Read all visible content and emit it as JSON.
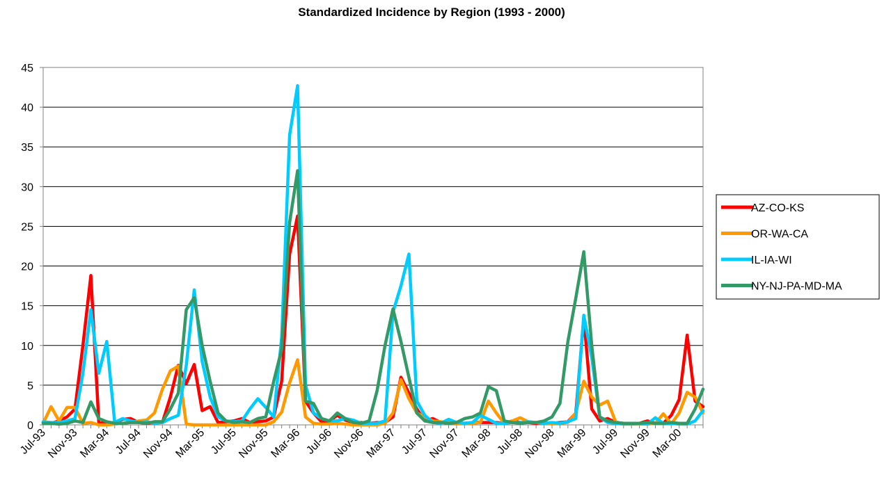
{
  "chart_data": {
    "type": "line",
    "title": "Standardized Incidence by Region (1993 - 2000)",
    "xlabel": "",
    "ylabel": "",
    "ylim": [
      0,
      45
    ],
    "yticks": [
      0,
      5,
      10,
      15,
      20,
      25,
      30,
      35,
      40,
      45
    ],
    "grid": true,
    "legend_position": "right",
    "x_tick_labels": [
      "Jul-93",
      "Nov-93",
      "Mar-94",
      "Jul-94",
      "Nov-94",
      "Mar-95",
      "Jul-95",
      "Nov-95",
      "Mar-96",
      "Jul-96",
      "Nov-96",
      "Mar-97",
      "Jul-97",
      "Nov-97",
      "Mar-98",
      "Jul-98",
      "Nov-98",
      "Mar-99",
      "Jul-99",
      "Nov-99",
      "Mar-00"
    ],
    "x": [
      "Jul-93",
      "Aug-93",
      "Sep-93",
      "Oct-93",
      "Nov-93",
      "Dec-93",
      "Jan-94",
      "Feb-94",
      "Mar-94",
      "Apr-94",
      "May-94",
      "Jun-94",
      "Jul-94",
      "Aug-94",
      "Sep-94",
      "Oct-94",
      "Nov-94",
      "Dec-94",
      "Jan-95",
      "Feb-95",
      "Mar-95",
      "Apr-95",
      "May-95",
      "Jun-95",
      "Jul-95",
      "Aug-95",
      "Sep-95",
      "Oct-95",
      "Nov-95",
      "Dec-95",
      "Jan-96",
      "Feb-96",
      "Mar-96",
      "Apr-96",
      "May-96",
      "Jun-96",
      "Jul-96",
      "Aug-96",
      "Sep-96",
      "Oct-96",
      "Nov-96",
      "Dec-96",
      "Jan-97",
      "Feb-97",
      "Mar-97",
      "Apr-97",
      "May-97",
      "Jun-97",
      "Jul-97",
      "Aug-97",
      "Sep-97",
      "Oct-97",
      "Nov-97",
      "Dec-97",
      "Jan-98",
      "Feb-98",
      "Mar-98",
      "Apr-98",
      "May-98",
      "Jun-98",
      "Jul-98",
      "Aug-98",
      "Sep-98",
      "Oct-98",
      "Nov-98",
      "Dec-98",
      "Jan-99",
      "Feb-99",
      "Mar-99",
      "Apr-99",
      "May-99",
      "Jun-99",
      "Jul-99",
      "Aug-99",
      "Sep-99",
      "Oct-99",
      "Nov-99",
      "Dec-99",
      "Jan-00",
      "Feb-00",
      "Mar-00",
      "Apr-00",
      "May-00",
      "Jun-00"
    ],
    "series": [
      {
        "name": "AZ-CO-KS",
        "color": "#ff0000",
        "values": [
          0.3,
          0.2,
          0.5,
          1,
          2,
          10,
          18.8,
          0.3,
          0.2,
          0.3,
          0.7,
          0.8,
          0.3,
          0.2,
          0.3,
          0.3,
          3.5,
          7.5,
          5.2,
          7.6,
          1.8,
          2.3,
          0.3,
          0.4,
          0.5,
          0.8,
          0.3,
          0.4,
          0.5,
          1,
          5.5,
          21.5,
          26.3,
          3,
          1.5,
          0.4,
          0.5,
          1.2,
          0.6,
          0.3,
          0.3,
          0.2,
          0.3,
          0.3,
          1,
          6,
          4,
          2,
          0.5,
          0.8,
          0.3,
          0.3,
          0.3,
          0.2,
          0.3,
          0.3,
          0.3,
          0.3,
          0.2,
          0.5,
          0.3,
          0.3,
          0.2,
          0.3,
          0.2,
          0.3,
          0.4,
          1.5,
          13.5,
          2,
          0.5,
          0.8,
          0.3,
          0.2,
          0.2,
          0.2,
          0.5,
          0.2,
          0.2,
          1.2,
          3.2,
          11.3,
          3,
          2.3
        ]
      },
      {
        "name": "OR-WA-CA",
        "color": "#ff9900",
        "values": [
          0.2,
          2.3,
          0.5,
          2.2,
          2.2,
          0.2,
          0.3,
          0,
          0,
          0.1,
          0.2,
          0.3,
          0.5,
          0.6,
          1.5,
          4.5,
          6.8,
          7.4,
          0.1,
          0,
          0,
          0,
          0,
          0,
          0,
          0,
          0,
          0,
          0,
          0.4,
          1.6,
          5.3,
          8.2,
          1,
          0.2,
          0.1,
          0.1,
          0.2,
          0.1,
          0,
          0,
          0,
          0,
          0.2,
          1.5,
          5.7,
          3.3,
          1.5,
          1,
          0.5,
          0.4,
          0.3,
          0.2,
          0.2,
          0.2,
          0.3,
          3,
          1.5,
          0.2,
          0.5,
          0.9,
          0.4,
          0.3,
          0.2,
          0.2,
          0.2,
          0.3,
          1.5,
          5.5,
          3.5,
          2.5,
          3,
          0.4,
          0.1,
          0.1,
          0.1,
          0.1,
          0.2,
          1.4,
          0.1,
          1.5,
          4.1,
          3.5,
          1.5
        ]
      },
      {
        "name": "IL-IA-WI",
        "color": "#00ccff",
        "values": [
          0.4,
          0.3,
          0.3,
          0.5,
          0.8,
          6.5,
          14.5,
          6.5,
          10.5,
          0.3,
          0.8,
          0.5,
          0.3,
          0.4,
          0.2,
          0.3,
          0.8,
          1.2,
          7.5,
          17,
          8,
          3.5,
          1,
          0.5,
          0.4,
          0.5,
          2,
          3.3,
          2.2,
          1,
          11,
          36.5,
          42.7,
          5,
          1.5,
          0.8,
          0.5,
          0.5,
          0.8,
          0.6,
          0.2,
          0.2,
          0.2,
          0.5,
          14.2,
          17.5,
          21.5,
          3,
          1.2,
          0.3,
          0.2,
          0.7,
          0.3,
          0.2,
          0.3,
          1.2,
          0.7,
          0.2,
          0.2,
          0.3,
          0.3,
          0.4,
          0.3,
          0.2,
          0.3,
          0.2,
          0.4,
          0.8,
          13.8,
          8.5,
          1,
          0.3,
          0.2,
          0.1,
          0.1,
          0.2,
          0.1,
          0.9,
          0.2,
          0.2,
          0.1,
          0.1,
          0.5,
          1.8
        ]
      },
      {
        "name": "NY-NJ-PA-MD-MA",
        "color": "#339966",
        "values": [
          0.2,
          0.2,
          0.1,
          0.2,
          0.5,
          0.3,
          2.9,
          0.8,
          0.4,
          0.2,
          0.2,
          0.3,
          0.3,
          0.2,
          0.4,
          0.4,
          2,
          4,
          14.5,
          16,
          10,
          5.5,
          1.5,
          0.5,
          0.3,
          0.4,
          0.3,
          0.8,
          1,
          5.5,
          9.5,
          25.5,
          32,
          3,
          2.7,
          0.8,
          0.5,
          1.5,
          0.8,
          0.3,
          0.2,
          0.5,
          4.3,
          10,
          14.6,
          10.5,
          6,
          1.5,
          0.5,
          0.3,
          0.3,
          0.2,
          0.3,
          0.8,
          1,
          1.5,
          4.8,
          4.3,
          0.5,
          0.3,
          0.2,
          0.3,
          0.3,
          0.5,
          1,
          2.7,
          10.5,
          16,
          21.8,
          10,
          1,
          0.5,
          0.3,
          0.2,
          0.2,
          0.2,
          0.3,
          0.2,
          0.2,
          0.3,
          0.2,
          0.2,
          2,
          4.5
        ]
      }
    ]
  }
}
